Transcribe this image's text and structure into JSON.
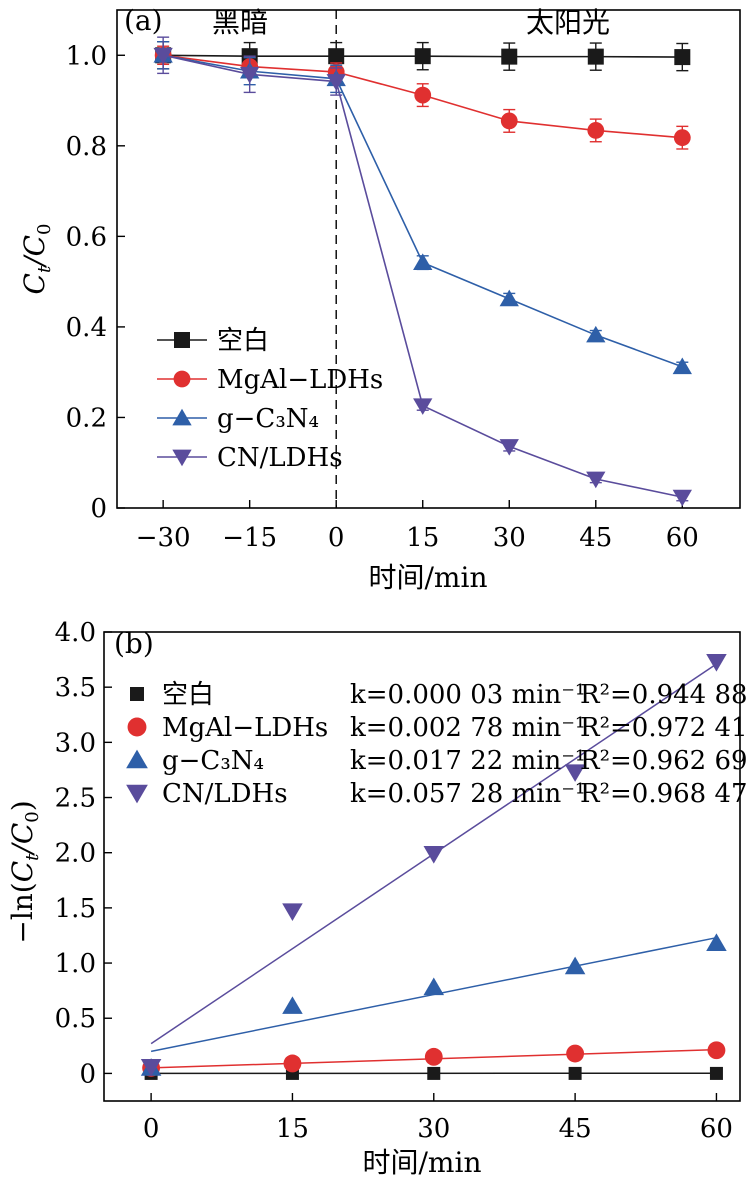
{
  "chart_data": [
    {
      "panel_label": "(a)",
      "type": "line",
      "x": [
        -30,
        -15,
        0,
        15,
        30,
        45,
        60
      ],
      "xlim": [
        -38,
        70
      ],
      "ylim": [
        0,
        1.1
      ],
      "xticks": [
        "−30",
        "−15",
        "0",
        "15",
        "30",
        "45",
        "60"
      ],
      "yticks": [
        "0",
        "0.2",
        "0.4",
        "0.6",
        "0.8",
        "1.0"
      ],
      "xlabel": "时间/min",
      "ylabel": {
        "main": "C",
        "sub1": "t",
        "sep": "/C",
        "sub2": "0"
      },
      "region_labels": {
        "dark": "黑暗",
        "light": "太阳光"
      },
      "divider_x": 0,
      "legend_position": "bottom-left",
      "series": [
        {
          "name": "空白",
          "marker": "square",
          "color": "#1a1a1a",
          "values": [
            1.0,
            0.998,
            0.998,
            0.998,
            0.997,
            0.997,
            0.996
          ],
          "errors": [
            0.03,
            0.03,
            0.03,
            0.03,
            0.03,
            0.03,
            0.03
          ]
        },
        {
          "name": "MgAl−LDHs",
          "marker": "circle",
          "color": "#e03030",
          "values": [
            1.0,
            0.975,
            0.963,
            0.912,
            0.855,
            0.834,
            0.818
          ],
          "errors": [
            0.02,
            0.02,
            0.02,
            0.025,
            0.025,
            0.025,
            0.025
          ]
        },
        {
          "name": "g−C₃N₄",
          "marker": "triangle-up",
          "color": "#2e5fa8",
          "values": [
            1.0,
            0.965,
            0.948,
            0.542,
            0.462,
            0.382,
            0.312
          ],
          "errors": [
            0.03,
            0.03,
            0.03,
            0.015,
            0.012,
            0.01,
            0.01
          ]
        },
        {
          "name": "CN/LDHs",
          "marker": "triangle-down",
          "color": "#5a4c9c",
          "values": [
            1.0,
            0.958,
            0.942,
            0.226,
            0.136,
            0.064,
            0.024
          ],
          "errors": [
            0.04,
            0.04,
            0.03,
            0.01,
            0.01,
            0.008,
            0.008
          ]
        }
      ]
    },
    {
      "panel_label": "(b)",
      "type": "scatter",
      "x": [
        0,
        15,
        30,
        45,
        60
      ],
      "xlim": [
        -5,
        62.5
      ],
      "ylim": [
        -0.25,
        4.0
      ],
      "xticks": [
        "0",
        "15",
        "30",
        "45",
        "60"
      ],
      "yticks": [
        "0",
        "0.5",
        "1.0",
        "1.5",
        "2.0",
        "2.5",
        "3.0",
        "3.5",
        "4.0"
      ],
      "xlabel": "时间/min",
      "ylabel": "−ln(Ct/C0)",
      "legend_position": "top-left",
      "series": [
        {
          "name": "空白",
          "marker": "square",
          "color": "#1a1a1a",
          "values": [
            0.0,
            0.0,
            0.0,
            0.0,
            0.0
          ],
          "fit": [
            0.0,
            0.0018
          ],
          "k_text": "k=0.000 03 min⁻¹",
          "r2_text": "R²=0.944 88"
        },
        {
          "name": "MgAl−LDHs",
          "marker": "circle",
          "color": "#e03030",
          "values": [
            0.05,
            0.09,
            0.15,
            0.18,
            0.21
          ],
          "fit": [
            0.05,
            0.215
          ],
          "k_text": "k=0.002 78 min⁻¹",
          "r2_text": "R²=0.972 41"
        },
        {
          "name": "g−C₃N₄",
          "marker": "triangle-up",
          "color": "#2e5fa8",
          "values": [
            0.05,
            0.61,
            0.78,
            0.97,
            1.18
          ],
          "fit": [
            0.2,
            1.23
          ],
          "k_text": "k=0.017 22 min⁻¹",
          "r2_text": "R²=0.962 69"
        },
        {
          "name": "CN/LDHs",
          "marker": "triangle-down",
          "color": "#5a4c9c",
          "values": [
            0.06,
            1.47,
            1.99,
            2.73,
            3.73
          ],
          "fit": [
            0.27,
            3.71
          ],
          "k_text": "k=0.057 28 min⁻¹",
          "r2_text": "R²=0.968 47"
        }
      ]
    }
  ]
}
